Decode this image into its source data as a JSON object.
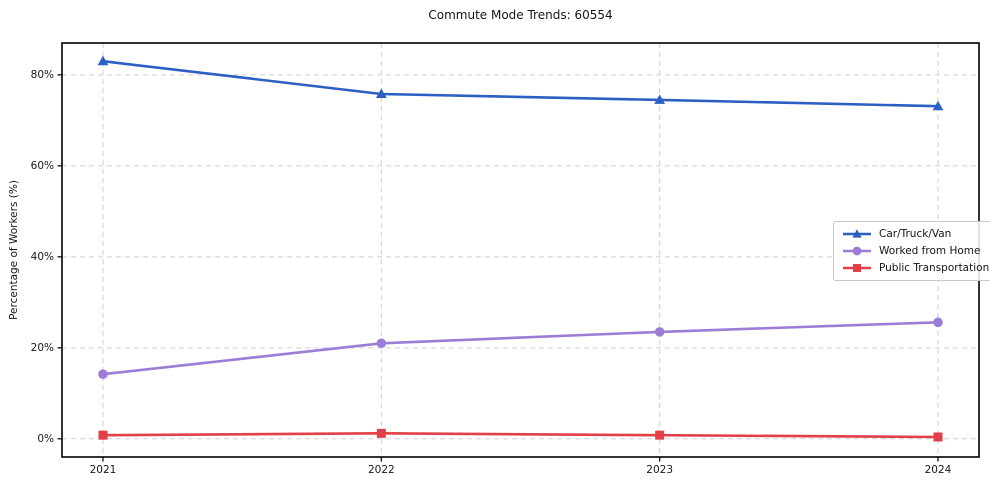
{
  "chart_data": {
    "type": "line",
    "title": "Commute Mode Trends: 60554",
    "xlabel": "",
    "ylabel": "Percentage of Workers (%)",
    "x": [
      "2021",
      "2022",
      "2023",
      "2024"
    ],
    "yticks": [
      {
        "value": 0,
        "label": "0%"
      },
      {
        "value": 20,
        "label": "20%"
      },
      {
        "value": 40,
        "label": "40%"
      },
      {
        "value": 60,
        "label": "60%"
      },
      {
        "value": 80,
        "label": "80%"
      }
    ],
    "ylim": [
      -4,
      87
    ],
    "grid": true,
    "legend_position": "center-right",
    "series": [
      {
        "name": "Car/Truck/Van",
        "color": "#2b5fc2",
        "marker": "triangle",
        "values": [
          83.0,
          75.8,
          74.5,
          73.1
        ]
      },
      {
        "name": "Worked from Home",
        "color": "#9b7dd8",
        "marker": "circle",
        "values": [
          14.2,
          21.0,
          23.5,
          25.6
        ]
      },
      {
        "name": "Public Transportation",
        "color": "#e23f47",
        "marker": "square",
        "values": [
          0.8,
          1.2,
          0.8,
          0.4
        ]
      }
    ],
    "colors": {
      "grid": "#cfcfcf",
      "spine": "#000000",
      "text": "#151515"
    }
  }
}
